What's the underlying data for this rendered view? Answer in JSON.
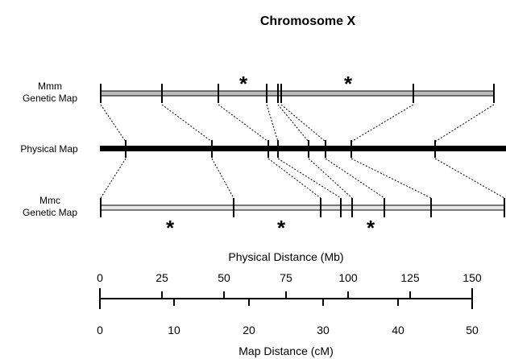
{
  "title": "Chromosome X",
  "rows": {
    "mmm_label_1": "Mmm",
    "mmm_label_2": "Genetic Map",
    "physical_label": "Physical Map",
    "mmc_label_1": "Mmc",
    "mmc_label_2": "Genetic Map"
  },
  "physical_axis": {
    "title": "Physical Distance (Mb)",
    "ticks": [
      "0",
      "25",
      "50",
      "75",
      "100",
      "125",
      "150"
    ]
  },
  "map_axis": {
    "title": "Map Distance (cM)",
    "ticks": [
      "0",
      "10",
      "20",
      "30",
      "40",
      "50"
    ]
  },
  "asterisk": "*",
  "colors": {
    "mmm_fill": "#bbbbbb",
    "mmc_fill": "#e6e6e6",
    "line": "#000000"
  }
}
